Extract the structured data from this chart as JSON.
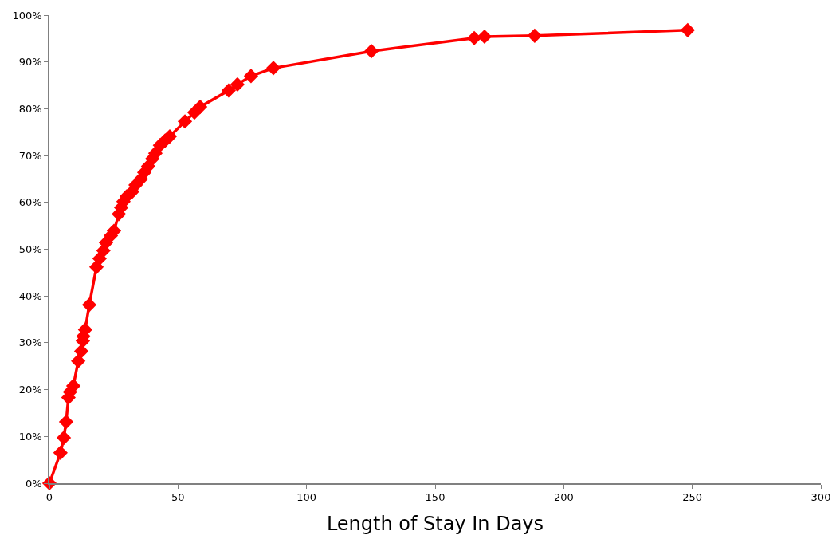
{
  "chart_data": {
    "type": "line",
    "xlabel": "Length of Stay In Days",
    "series": [
      {
        "color": "#ff0000",
        "x": [
          0,
          4.3,
          5.6,
          6.5,
          7.4,
          8,
          9.3,
          11.2,
          12.4,
          13,
          13.2,
          13.9,
          15.5,
          18.3,
          19.5,
          21,
          22,
          23.9,
          25.1,
          27,
          27.9,
          28.8,
          30.1,
          32.2,
          33.5,
          35.6,
          36.9,
          38.4,
          40,
          41.2,
          43,
          45,
          46.8,
          52.7,
          56.4,
          58.6,
          69.7,
          73.1,
          78.4,
          87.1,
          125.2,
          165.2,
          169.2,
          188.7,
          248.2
        ],
        "values": [
          0,
          6.5,
          9.7,
          13.1,
          18.3,
          19.5,
          20.8,
          26.1,
          28.2,
          30.4,
          31.4,
          32.8,
          38.1,
          46.2,
          48,
          49.7,
          51.4,
          52.9,
          53.9,
          57.5,
          58.9,
          60.2,
          61.3,
          62.3,
          63.7,
          65,
          66.4,
          67.7,
          69.3,
          70.5,
          72.2,
          73.2,
          74.1,
          77.3,
          79.2,
          80.4,
          83.9,
          85.2,
          87,
          88.7,
          92.3,
          95.1,
          95.4,
          95.6,
          96.8
        ]
      }
    ],
    "xlim": [
      0,
      300
    ],
    "xticks": [
      0,
      50,
      100,
      150,
      200,
      250,
      300
    ],
    "ylim": [
      0,
      100
    ],
    "yticks": [
      {
        "value": 0,
        "label": "0%"
      },
      {
        "value": 10,
        "label": "10%"
      },
      {
        "value": 20,
        "label": "20%"
      },
      {
        "value": 30,
        "label": "30%"
      },
      {
        "value": 40,
        "label": "40%"
      },
      {
        "value": 50,
        "label": "50%"
      },
      {
        "value": 60,
        "label": "60%"
      },
      {
        "value": 70,
        "label": "70%"
      },
      {
        "value": 80,
        "label": "80%"
      },
      {
        "value": 90,
        "label": "90%"
      },
      {
        "value": 100,
        "label": "100%"
      }
    ],
    "marker": "diamond",
    "line_style": "solid"
  }
}
